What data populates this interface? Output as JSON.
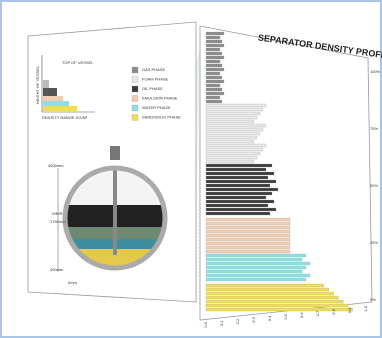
{
  "title": "SEPARATOR DENSITY PROFILE",
  "mini_chart": {
    "title": "TOP OF VESSEL",
    "y_label": "HEIGHT OF VESSEL",
    "x_label": "DENSITY RANGE KG/M³"
  },
  "legend": [
    {
      "name": "GAS PHASE",
      "color": "#8a8a8a"
    },
    {
      "name": "FOAM PHASE",
      "color": "#e6e6e6"
    },
    {
      "name": "OIL PHASE",
      "color": "#3a3a3a"
    },
    {
      "name": "EMULSION PHASE",
      "color": "#f2cdb0"
    },
    {
      "name": "WATER PHASE",
      "color": "#8fdde6"
    },
    {
      "name": "SAND/SOLID PHASE",
      "color": "#f0dc5a"
    }
  ],
  "vessel_labels": {
    "top": "3600mm",
    "weir": "WEIR",
    "weir_height": "1750mm",
    "low": "400mm",
    "bottom": "0mm"
  },
  "profile_levels": [
    "100%",
    "75%",
    "50%",
    "25%",
    "0%"
  ],
  "density_ticks": [
    "0.0",
    "0.1",
    "0.2",
    "0.3",
    "0.4",
    "0.5",
    "0.6",
    "0.7",
    "0.8",
    "0.9",
    "1.0"
  ]
}
